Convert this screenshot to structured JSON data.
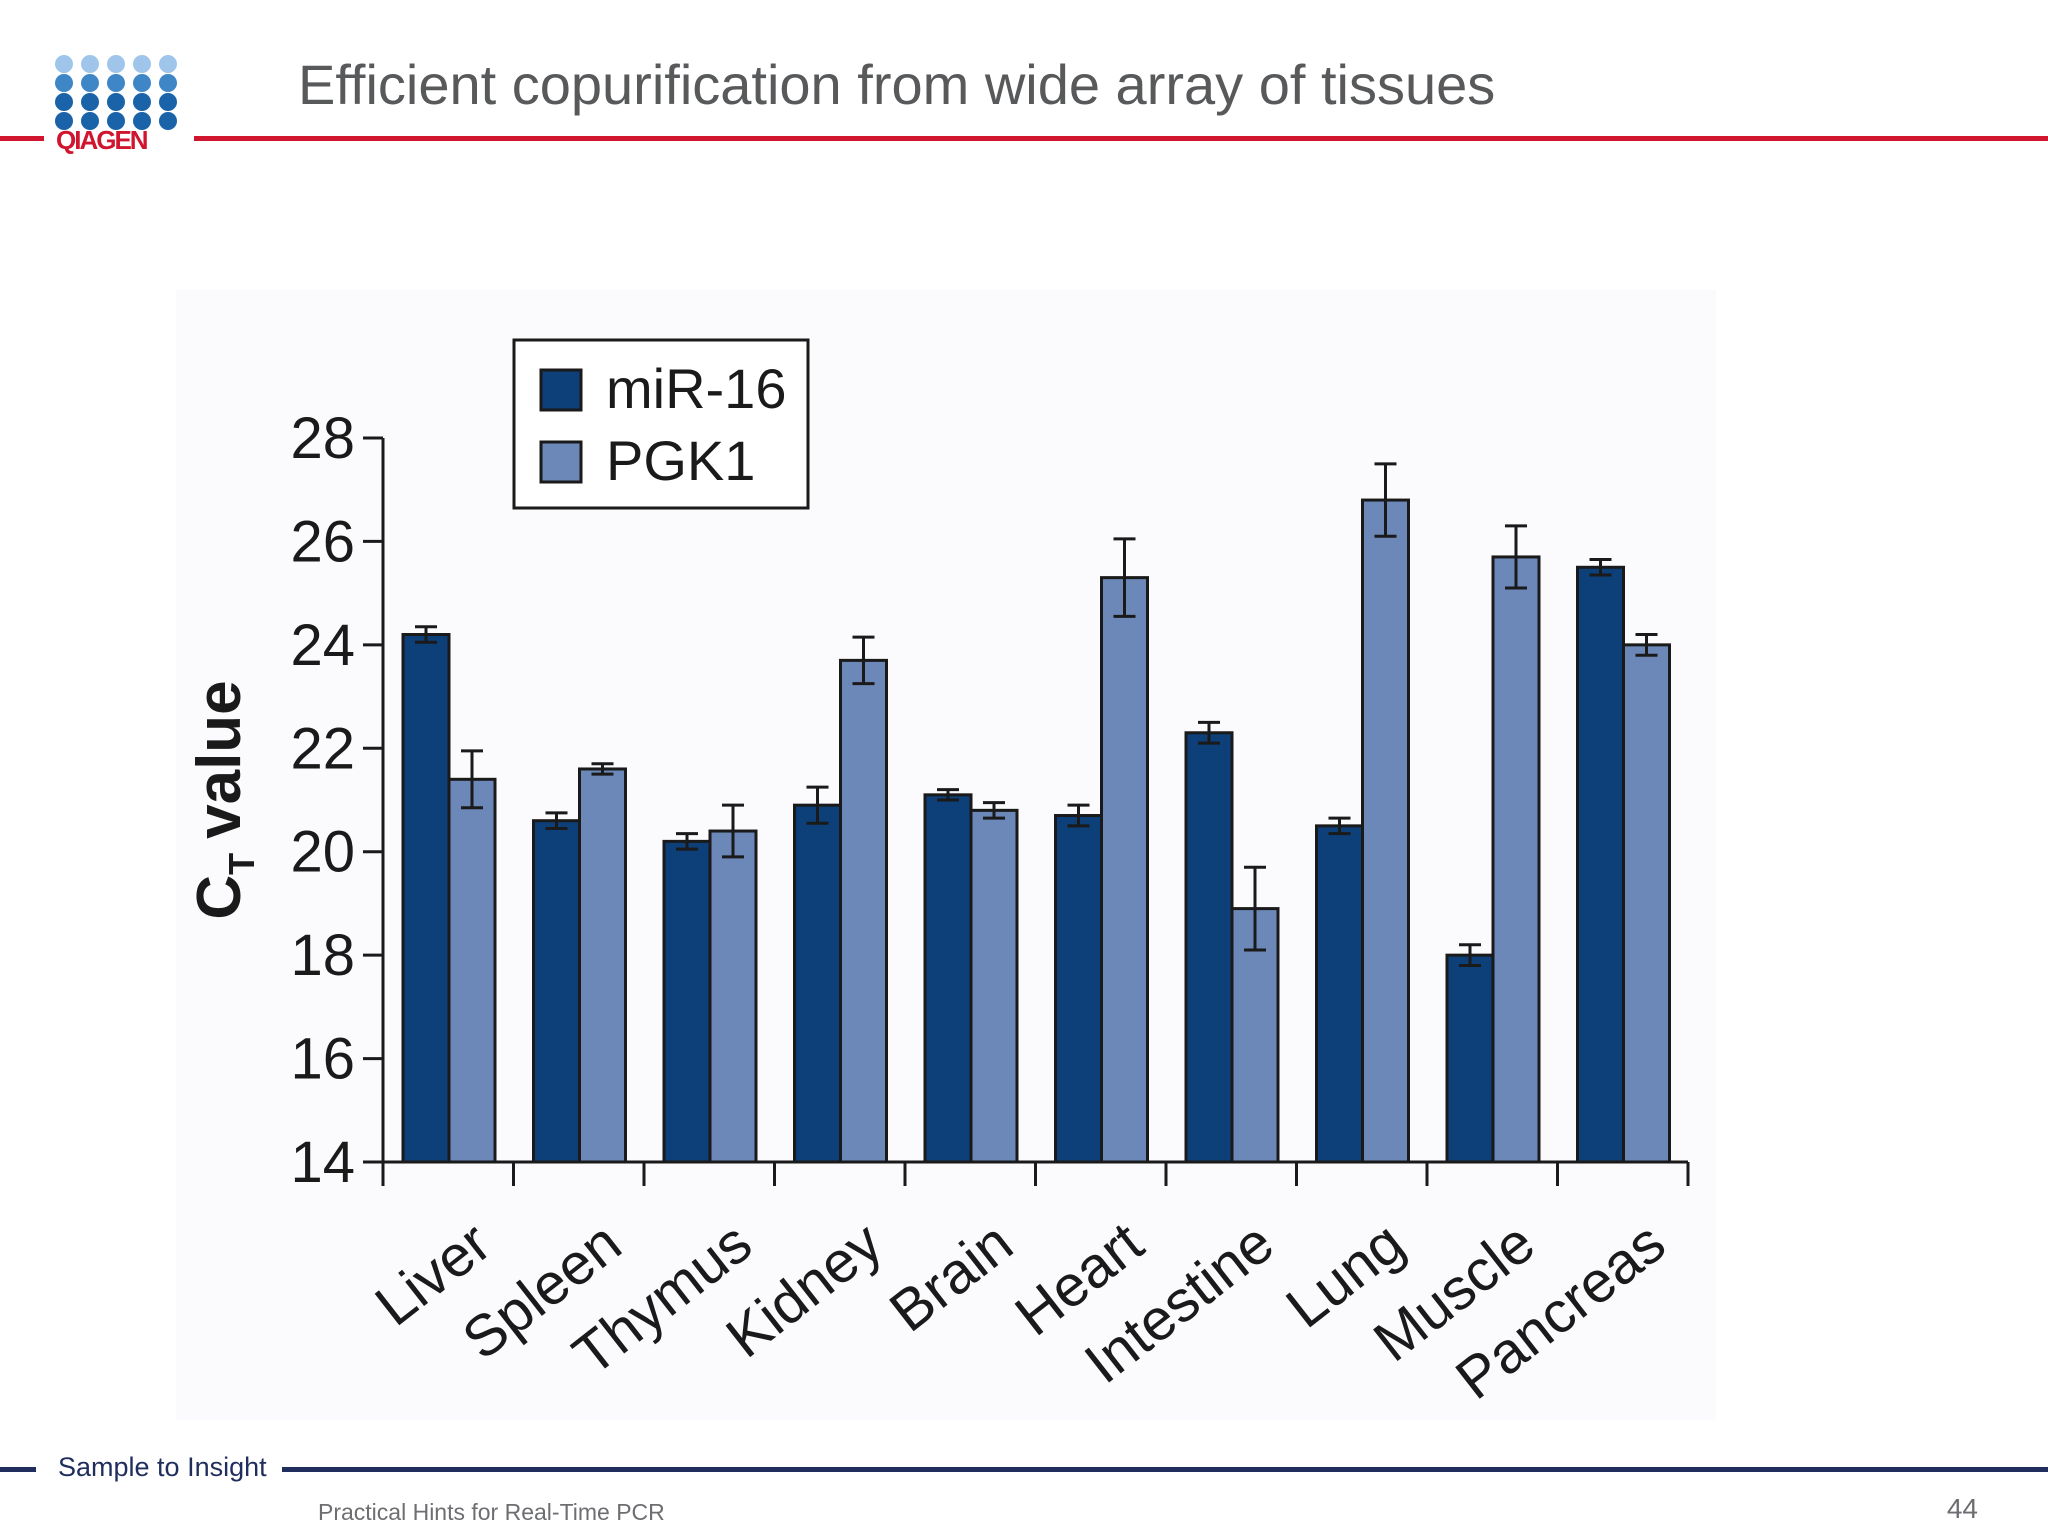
{
  "header": {
    "logo_text": "QIAGEN",
    "title": "Efficient copurification from wide array of tissues"
  },
  "footer": {
    "tagline": "Sample to Insight",
    "text": "Practical Hints for Real-Time PCR",
    "page_number": "44"
  },
  "colors": {
    "accent_red": "#d0152f",
    "navy": "#1f2e5c",
    "mir16": "#0d3f78",
    "pgk1": "#6b88b8",
    "logo_dark": "#1a63a8",
    "logo_mid": "#3f86c6",
    "logo_light": "#9fc6ea"
  },
  "chart_data": {
    "type": "bar",
    "title": "",
    "xlabel": "",
    "ylabel_main": "C",
    "ylabel_sub": "T",
    "ylabel_rest": "value",
    "ylim": [
      14,
      28
    ],
    "yticks": [
      "14",
      "16",
      "18",
      "20",
      "22",
      "24",
      "26",
      "28"
    ],
    "legend_position": "top-left",
    "categories": [
      "Liver",
      "Spleen",
      "Thymus",
      "Kidney",
      "Brain",
      "Heart",
      "Intestine",
      "Lung",
      "Muscle",
      "Pancreas"
    ],
    "series": [
      {
        "name": "miR-16",
        "color": "#0d3f78",
        "values": [
          24.2,
          20.6,
          20.2,
          20.9,
          21.1,
          20.7,
          22.3,
          20.5,
          18.0,
          25.5
        ],
        "errors": [
          0.15,
          0.15,
          0.15,
          0.35,
          0.1,
          0.2,
          0.2,
          0.15,
          0.2,
          0.15
        ]
      },
      {
        "name": "PGK1",
        "color": "#6b88b8",
        "values": [
          21.4,
          21.6,
          20.4,
          23.7,
          20.8,
          25.3,
          18.9,
          26.8,
          25.7,
          24.0
        ],
        "errors": [
          0.55,
          0.1,
          0.5,
          0.45,
          0.15,
          0.75,
          0.8,
          0.7,
          0.6,
          0.2
        ]
      }
    ]
  }
}
